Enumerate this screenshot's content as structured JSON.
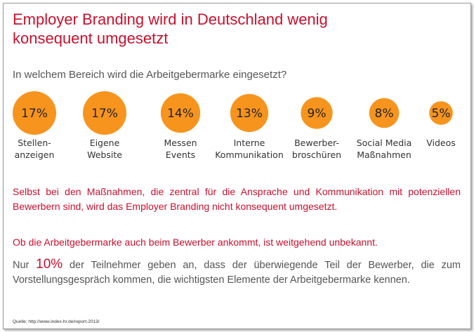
{
  "title_line1": "Employer Branding wird in Deutschland wenig",
  "title_line2": "konsequent umgesetzt",
  "question": "In welchem Bereich wird die Arbeitgebermarke eingesetzt?",
  "chart_data": {
    "type": "bubble",
    "title": "",
    "categories": [
      [
        "Stellen-",
        "anzeigen"
      ],
      [
        "Eigene",
        "Website"
      ],
      [
        "Messen",
        "Events"
      ],
      [
        "Interne",
        "Kommunikation"
      ],
      [
        "Bewerber-",
        "broschüren"
      ],
      [
        "Social Media",
        "Maßnahmen"
      ],
      [
        "Videos"
      ]
    ],
    "values": [
      17,
      17,
      14,
      13,
      9,
      8,
      5
    ],
    "value_labels": [
      "17%",
      "17%",
      "14%",
      "13%",
      "9%",
      "8%",
      "5%"
    ],
    "bubble_color": "#f7941d"
  },
  "paragraph1": "Selbst bei den Maßnahmen, die zentral für die Ansprache und Kommunikation mit potenziellen Bewerbern sind, wird das Employer Branding nicht konsequent umgesetzt.",
  "paragraph2": "Ob die Arbeitgebermarke auch beim Bewerber ankommt, ist weitgehend unbekannt.",
  "paragraph3": {
    "prefix": "Nur ",
    "highlight": "10%",
    "suffix": " der Teilnehmer geben an, dass der überwiegende Teil der Bewerber, die zum Vorstellungsgespräch kommen, die wichtigsten Elemente der Arbeitgebermarke kennen."
  },
  "source": "Quelle: http://www.index-hr.de/report-2013/"
}
